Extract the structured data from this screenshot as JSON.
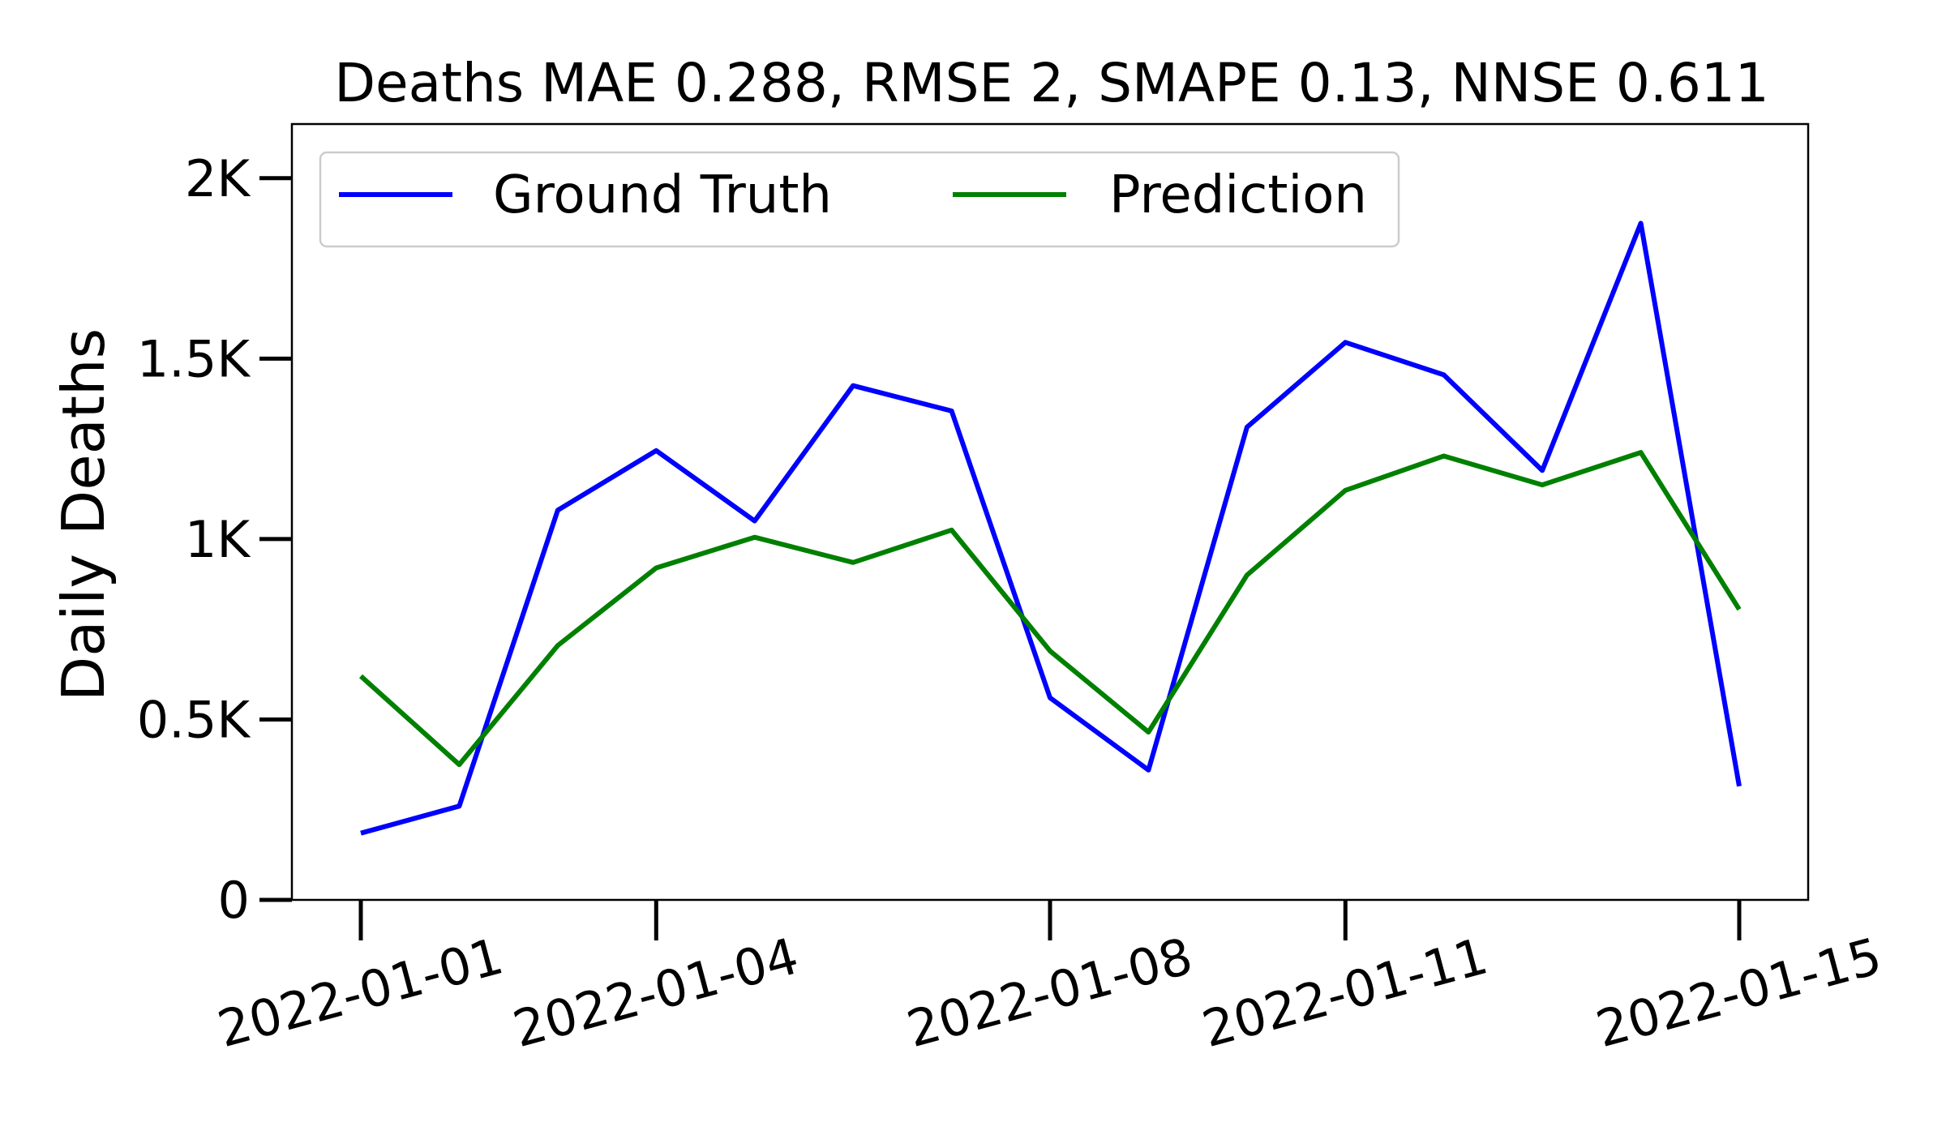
{
  "chart_data": {
    "type": "line",
    "title": "Deaths MAE 0.288, RMSE 2, SMAPE 0.13, NNSE 0.611",
    "xlabel": "",
    "ylabel": "Daily Deaths",
    "x": [
      "2022-01-01",
      "2022-01-02",
      "2022-01-03",
      "2022-01-04",
      "2022-01-05",
      "2022-01-06",
      "2022-01-07",
      "2022-01-08",
      "2022-01-09",
      "2022-01-10",
      "2022-01-11",
      "2022-01-12",
      "2022-01-13",
      "2022-01-14",
      "2022-01-15"
    ],
    "x_ticks": [
      "2022-01-01",
      "2022-01-04",
      "2022-01-08",
      "2022-01-11",
      "2022-01-15"
    ],
    "y_ticks": [
      {
        "value": 0,
        "label": "0"
      },
      {
        "value": 500,
        "label": "0.5K"
      },
      {
        "value": 1000,
        "label": "1K"
      },
      {
        "value": 1500,
        "label": "1.5K"
      },
      {
        "value": 2000,
        "label": "2K"
      }
    ],
    "ylim": [
      0,
      2150
    ],
    "grid": false,
    "legend_position": "top-left",
    "series": [
      {
        "name": "Ground Truth",
        "color": "#0000ff",
        "values": [
          185,
          260,
          1080,
          1245,
          1050,
          1425,
          1355,
          560,
          360,
          1310,
          1545,
          1455,
          1190,
          1875,
          315
        ]
      },
      {
        "name": "Prediction",
        "color": "#008000",
        "values": [
          620,
          375,
          705,
          920,
          1005,
          935,
          1025,
          690,
          465,
          900,
          1135,
          1230,
          1150,
          1240,
          805
        ]
      }
    ]
  }
}
